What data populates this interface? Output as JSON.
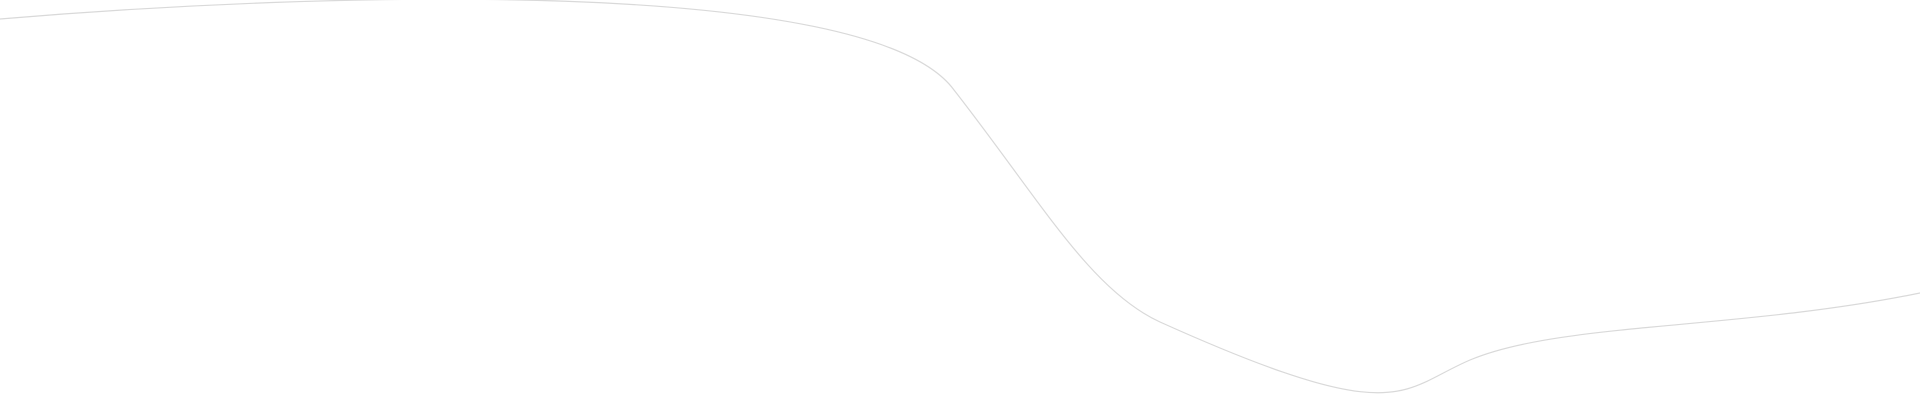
{
  "background_color": "#ffffff",
  "curve": {
    "stroke_color": "#d9d9d9",
    "icon": "decorative-wave-line"
  }
}
